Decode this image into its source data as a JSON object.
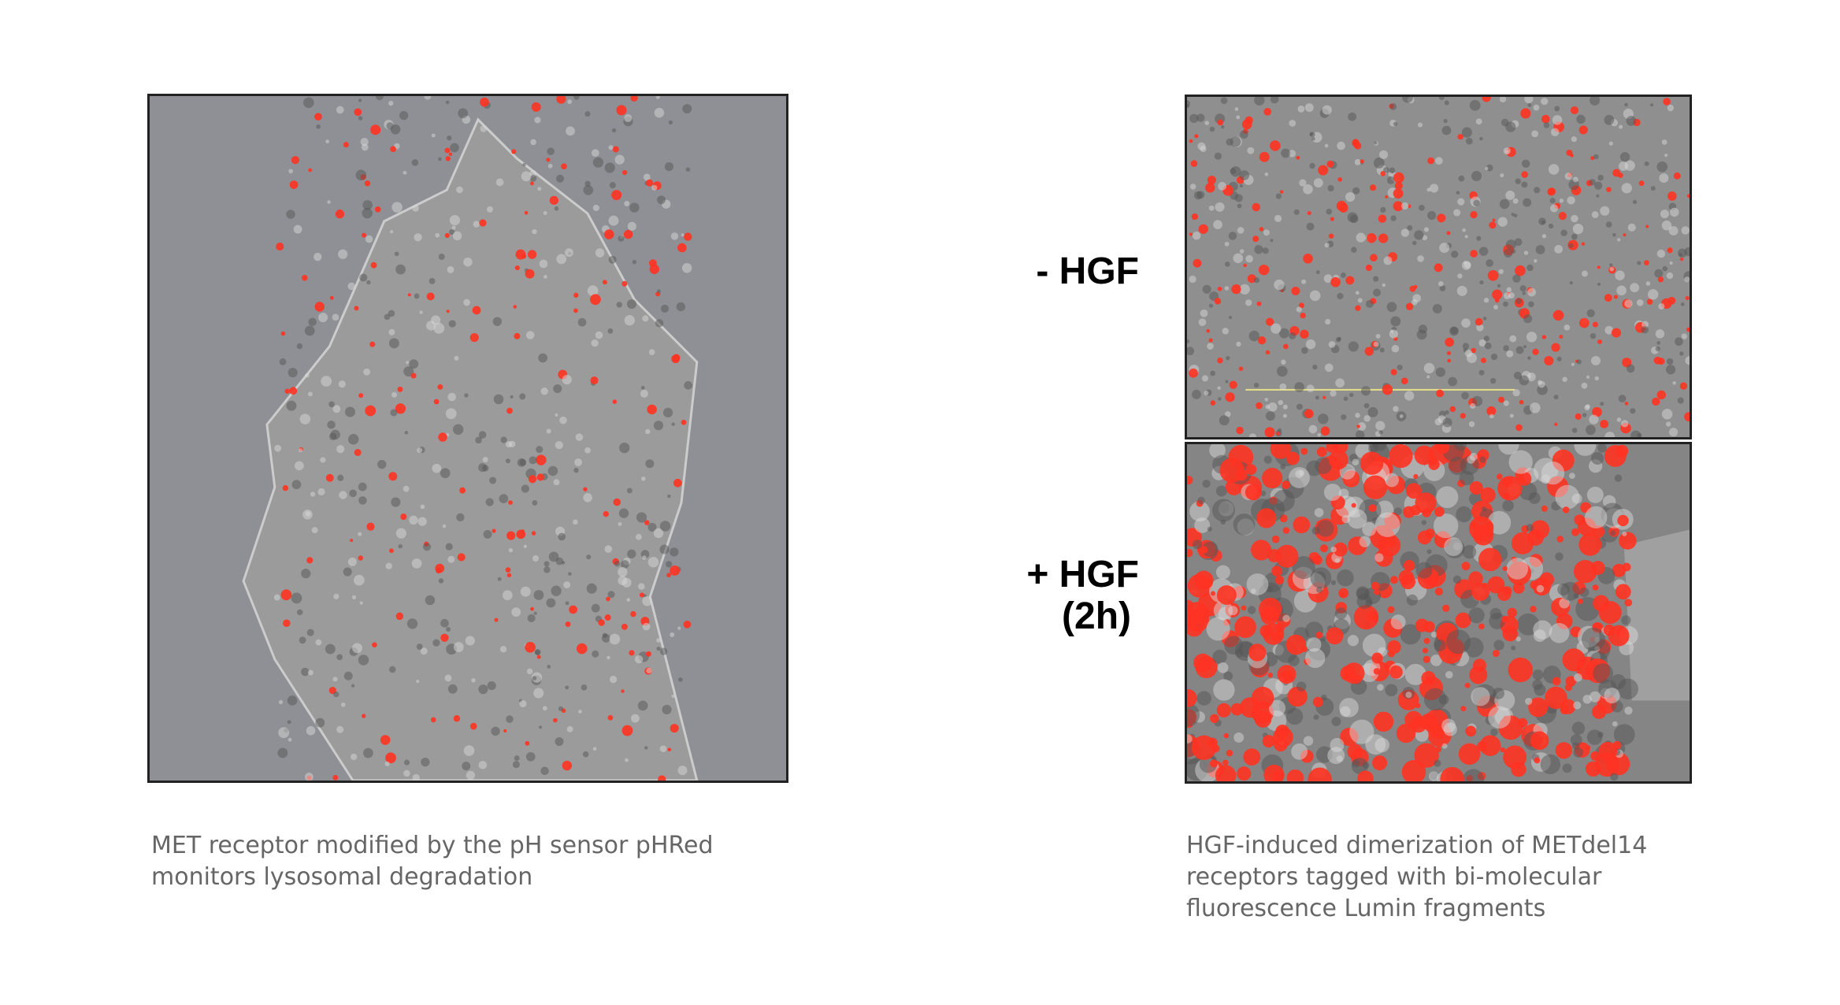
{
  "panels": {
    "left": {
      "caption": [
        "MET receptor modified by the pH sensor pHRed",
        "monitors lysosomal degradation"
      ]
    },
    "right": {
      "conditions": [
        {
          "label": [
            "- HGF"
          ]
        },
        {
          "label": [
            "+ HGF",
            "(2h)"
          ]
        }
      ],
      "caption": [
        "HGF-induced dimerization of METdel14",
        "receptors tagged with bi-molecular",
        "fluorescence Lumin fragments"
      ]
    }
  }
}
